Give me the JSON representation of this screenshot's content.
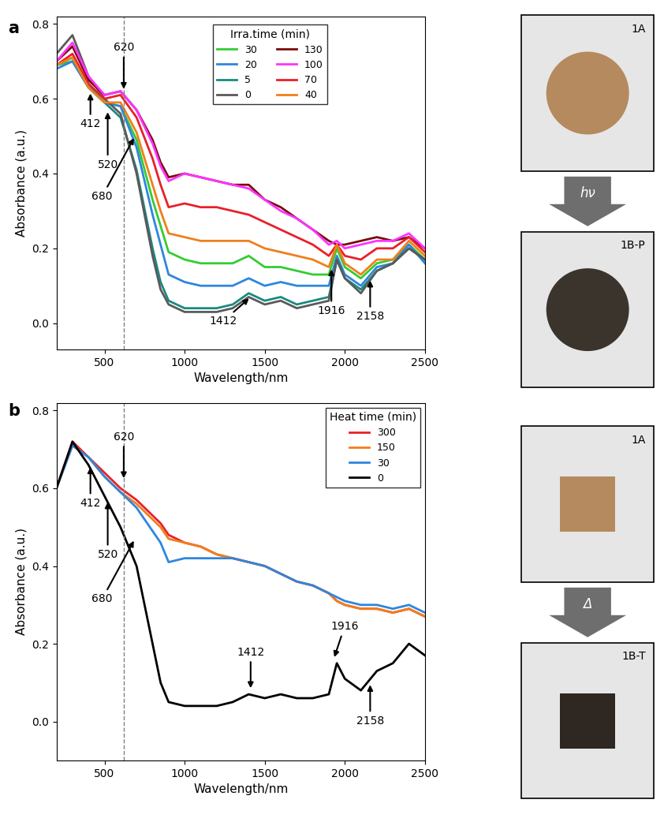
{
  "chart_data": [
    {
      "type": "line",
      "panel_label": "a",
      "x_label": "Wavelength/nm",
      "y_label": "Absorbance (a.u.)",
      "xlim": [
        200,
        2500
      ],
      "ylim": [
        -0.07,
        0.82
      ],
      "xticks": [
        500,
        1000,
        1500,
        2000,
        2500
      ],
      "yticks": [
        0.0,
        0.2,
        0.4,
        0.6,
        0.8
      ],
      "legend": "upper center",
      "legend_title": "Irra.time (min)",
      "dashed_line_x": 620,
      "x": [
        200,
        300,
        400,
        500,
        600,
        700,
        800,
        850,
        900,
        1000,
        1100,
        1200,
        1300,
        1400,
        1500,
        1600,
        1700,
        1800,
        1900,
        1950,
        2000,
        2100,
        2200,
        2300,
        2400,
        2500
      ],
      "series": [
        {
          "name": "30",
          "color": "#33cc33",
          "values": [
            0.69,
            0.7,
            0.63,
            0.59,
            0.58,
            0.49,
            0.33,
            0.26,
            0.19,
            0.17,
            0.16,
            0.16,
            0.16,
            0.18,
            0.15,
            0.15,
            0.14,
            0.13,
            0.13,
            0.2,
            0.15,
            0.12,
            0.16,
            0.17,
            0.21,
            0.17
          ]
        },
        {
          "name": "20",
          "color": "#2e86de",
          "values": [
            0.68,
            0.7,
            0.63,
            0.59,
            0.58,
            0.47,
            0.29,
            0.21,
            0.13,
            0.11,
            0.1,
            0.1,
            0.1,
            0.12,
            0.1,
            0.11,
            0.1,
            0.1,
            0.1,
            0.18,
            0.13,
            0.1,
            0.15,
            0.16,
            0.21,
            0.16
          ]
        },
        {
          "name": "5",
          "color": "#1a8a80",
          "values": [
            0.69,
            0.71,
            0.64,
            0.59,
            0.55,
            0.41,
            0.2,
            0.11,
            0.06,
            0.04,
            0.04,
            0.04,
            0.05,
            0.08,
            0.06,
            0.07,
            0.05,
            0.06,
            0.07,
            0.17,
            0.12,
            0.09,
            0.14,
            0.16,
            0.2,
            0.17
          ]
        },
        {
          "name": "0",
          "color": "#5a5a5a",
          "values": [
            0.72,
            0.77,
            0.66,
            0.6,
            0.56,
            0.4,
            0.18,
            0.09,
            0.05,
            0.03,
            0.03,
            0.03,
            0.04,
            0.07,
            0.05,
            0.06,
            0.04,
            0.05,
            0.06,
            0.17,
            0.12,
            0.08,
            0.14,
            0.16,
            0.2,
            0.17
          ]
        },
        {
          "name": "130",
          "color": "#7b0a0a",
          "values": [
            0.7,
            0.74,
            0.65,
            0.61,
            0.62,
            0.57,
            0.49,
            0.43,
            0.39,
            0.4,
            0.39,
            0.38,
            0.37,
            0.37,
            0.33,
            0.31,
            0.28,
            0.25,
            0.22,
            0.21,
            0.21,
            0.22,
            0.23,
            0.22,
            0.23,
            0.2
          ]
        },
        {
          "name": "100",
          "color": "#ff33ff",
          "values": [
            0.7,
            0.75,
            0.66,
            0.61,
            0.62,
            0.57,
            0.48,
            0.42,
            0.38,
            0.4,
            0.39,
            0.38,
            0.37,
            0.36,
            0.33,
            0.3,
            0.28,
            0.25,
            0.21,
            0.22,
            0.2,
            0.21,
            0.22,
            0.22,
            0.24,
            0.2
          ]
        },
        {
          "name": "70",
          "color": "#e8202a",
          "values": [
            0.69,
            0.72,
            0.64,
            0.6,
            0.61,
            0.55,
            0.44,
            0.37,
            0.31,
            0.32,
            0.31,
            0.31,
            0.3,
            0.29,
            0.27,
            0.25,
            0.23,
            0.21,
            0.18,
            0.21,
            0.18,
            0.17,
            0.2,
            0.2,
            0.23,
            0.19
          ]
        },
        {
          "name": "40",
          "color": "#f07f1b",
          "values": [
            0.69,
            0.71,
            0.63,
            0.59,
            0.59,
            0.51,
            0.37,
            0.3,
            0.24,
            0.23,
            0.22,
            0.22,
            0.22,
            0.22,
            0.2,
            0.19,
            0.18,
            0.17,
            0.15,
            0.21,
            0.16,
            0.13,
            0.17,
            0.17,
            0.22,
            0.18
          ]
        }
      ],
      "annotations": [
        {
          "label": "412",
          "x": 412,
          "y": 0.62
        },
        {
          "label": "520",
          "x": 520,
          "y": 0.57
        },
        {
          "label": "620",
          "x": 620,
          "y": 0.62
        },
        {
          "label": "680",
          "x": 690,
          "y": 0.5
        },
        {
          "label": "1412",
          "x": 1412,
          "y": 0.07
        },
        {
          "label": "1916",
          "x": 1916,
          "y": 0.15
        },
        {
          "label": "2158",
          "x": 2158,
          "y": 0.12
        }
      ],
      "transition": "hν",
      "images": [
        {
          "label": "1A",
          "shape": "circle",
          "color": "#b58a5f"
        },
        {
          "label": "1B-P",
          "shape": "circle",
          "color": "#3b342d"
        }
      ]
    },
    {
      "type": "line",
      "panel_label": "b",
      "x_label": "Wavelength/nm",
      "y_label": "Absorbance (a.u.)",
      "xlim": [
        200,
        2500
      ],
      "ylim": [
        -0.1,
        0.82
      ],
      "xticks": [
        500,
        1000,
        1500,
        2000,
        2500
      ],
      "yticks": [
        0.0,
        0.2,
        0.4,
        0.6,
        0.8
      ],
      "legend": "upper right",
      "legend_title": "Heat time (min)",
      "dashed_line_x": 620,
      "x": [
        200,
        300,
        400,
        500,
        600,
        700,
        800,
        850,
        900,
        1000,
        1100,
        1200,
        1300,
        1400,
        1500,
        1600,
        1700,
        1800,
        1900,
        1950,
        2000,
        2100,
        2200,
        2300,
        2400,
        2500
      ],
      "series": [
        {
          "name": "300",
          "color": "#e8202a",
          "values": [
            0.6,
            0.72,
            0.68,
            0.64,
            0.6,
            0.57,
            0.53,
            0.51,
            0.48,
            0.46,
            0.45,
            0.43,
            0.42,
            0.41,
            0.4,
            0.38,
            0.36,
            0.35,
            0.33,
            0.31,
            0.3,
            0.29,
            0.29,
            0.28,
            0.29,
            0.27
          ]
        },
        {
          "name": "150",
          "color": "#f07f1b",
          "values": [
            0.6,
            0.71,
            0.68,
            0.63,
            0.59,
            0.56,
            0.52,
            0.5,
            0.47,
            0.46,
            0.45,
            0.43,
            0.42,
            0.41,
            0.4,
            0.38,
            0.36,
            0.35,
            0.33,
            0.31,
            0.3,
            0.29,
            0.29,
            0.28,
            0.29,
            0.27
          ]
        },
        {
          "name": "30",
          "color": "#2e86de",
          "values": [
            0.6,
            0.71,
            0.68,
            0.63,
            0.59,
            0.55,
            0.49,
            0.46,
            0.41,
            0.42,
            0.42,
            0.42,
            0.42,
            0.41,
            0.4,
            0.38,
            0.36,
            0.35,
            0.33,
            0.32,
            0.31,
            0.3,
            0.3,
            0.29,
            0.3,
            0.28
          ]
        },
        {
          "name": "0",
          "color": "#000000",
          "values": [
            0.6,
            0.72,
            0.66,
            0.58,
            0.5,
            0.4,
            0.2,
            0.1,
            0.05,
            0.04,
            0.04,
            0.04,
            0.05,
            0.07,
            0.06,
            0.07,
            0.06,
            0.06,
            0.07,
            0.15,
            0.11,
            0.08,
            0.13,
            0.15,
            0.2,
            0.17
          ]
        }
      ],
      "annotations": [
        {
          "label": "412",
          "x": 412,
          "y": 0.66
        },
        {
          "label": "520",
          "x": 520,
          "y": 0.57
        },
        {
          "label": "620",
          "x": 620,
          "y": 0.62
        },
        {
          "label": "680",
          "x": 690,
          "y": 0.47
        },
        {
          "label": "1412",
          "x": 1412,
          "y": 0.08
        },
        {
          "label": "1916",
          "x": 1930,
          "y": 0.16
        },
        {
          "label": "2158",
          "x": 2158,
          "y": 0.1
        }
      ],
      "transition": "Δ",
      "images": [
        {
          "label": "1A",
          "shape": "square",
          "color": "#b58a5f"
        },
        {
          "label": "1B-T",
          "shape": "square",
          "color": "#2f2822"
        }
      ]
    }
  ]
}
